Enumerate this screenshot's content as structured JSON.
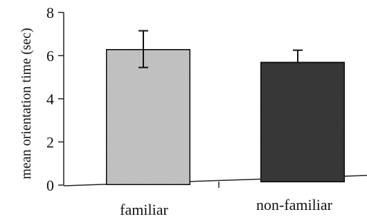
{
  "chart_data": {
    "type": "bar",
    "title": "",
    "xlabel": "",
    "ylabel": "mean orientation time (sec)",
    "ylim": [
      0,
      8
    ],
    "yticks": [
      0,
      2,
      4,
      6,
      8
    ],
    "grid": false,
    "categories": [
      "familiar",
      "non-familiar"
    ],
    "values": [
      6.3,
      5.7
    ],
    "errors": [
      0.85,
      0.55
    ],
    "colors": [
      "#c8c8c8",
      "#3a3a3a"
    ]
  }
}
